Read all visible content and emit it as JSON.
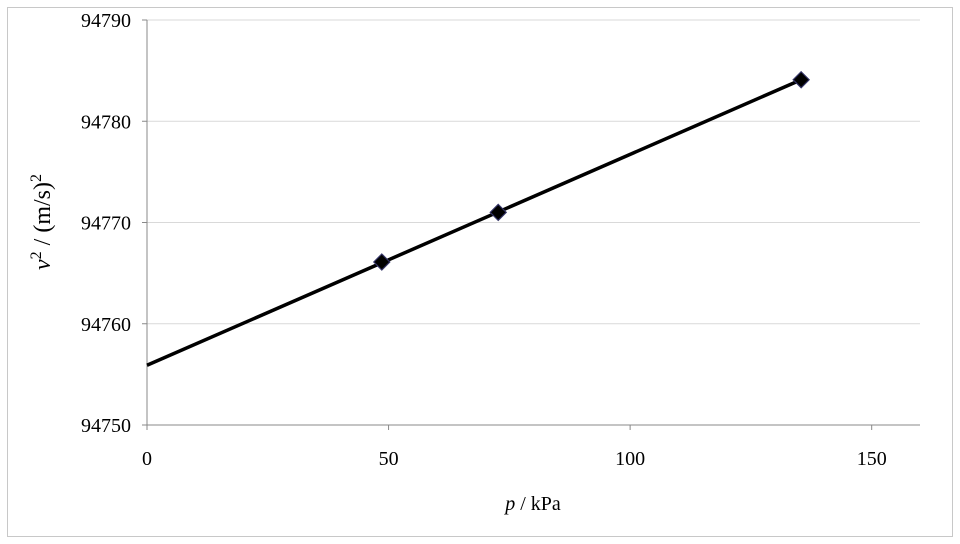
{
  "chart_data": {
    "type": "scatter",
    "x_label": [
      {
        "text": "p",
        "italic": true
      },
      {
        "text": " / kPa",
        "italic": false
      }
    ],
    "y_label": [
      {
        "text": "v",
        "italic": true,
        "sup": false
      },
      {
        "text": "2",
        "italic": false,
        "sup": true
      },
      {
        "text": " / (m/s)",
        "italic": false,
        "sup": false
      },
      {
        "text": "2",
        "italic": false,
        "sup": true
      }
    ],
    "series": [
      {
        "color": "#000000",
        "x": [
          48.6,
          72.7,
          135.4
        ],
        "values": [
          94766.1,
          94771.0,
          94784.1
        ]
      }
    ],
    "trendline": {
      "color": "#000000",
      "x": [
        0,
        135.4
      ],
      "values": [
        94755.9,
        94784.1
      ]
    },
    "xlim": [
      0,
      160
    ],
    "xticks": [
      0,
      50,
      100,
      150
    ],
    "ylim": [
      94750,
      94790
    ],
    "yticks": [
      94750,
      94760,
      94770,
      94780,
      94790
    ],
    "grid": true
  }
}
